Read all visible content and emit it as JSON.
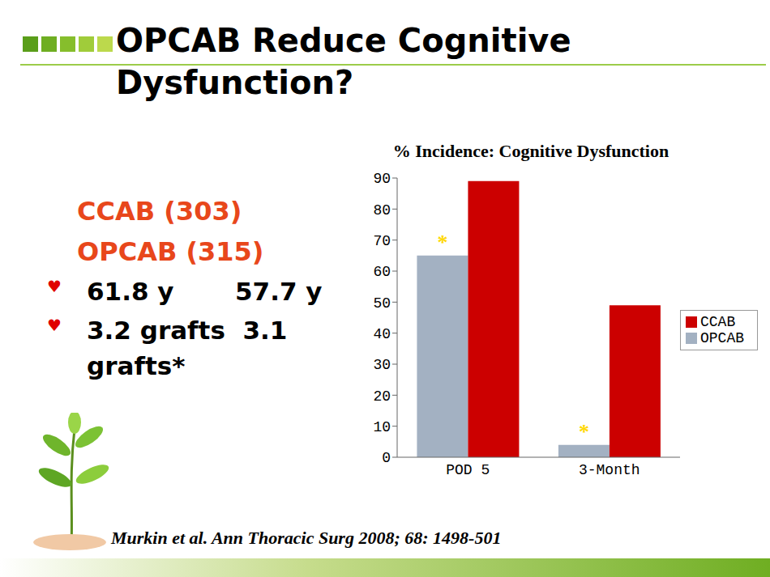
{
  "slide": {
    "title": "OPCAB Reduce Cognitive Dysfunction?",
    "groups": [
      "CCAB (303)",
      "OPCAB (315)"
    ],
    "bullet": "♥",
    "bullets": [
      "61.8 y       57.7 y",
      "3.2 grafts  3.1 grafts*"
    ],
    "citation": "Murkin et al. Ann Thoracic Surg 2008; 68: 1498-501"
  },
  "chart_data": {
    "type": "bar",
    "title": "% Incidence: Cognitive Dysfunction",
    "categories": [
      "POD 5",
      "3-Month"
    ],
    "series": [
      {
        "name": "OPCAB",
        "color": "#a3b1c2",
        "values": [
          65,
          4
        ]
      },
      {
        "name": "CCAB",
        "color": "#cc0000",
        "values": [
          89,
          49
        ]
      }
    ],
    "ylim": [
      0,
      90
    ],
    "yticks": [
      0,
      10,
      20,
      30,
      40,
      50,
      60,
      70,
      80,
      90
    ],
    "grid": false,
    "legend": "right",
    "annotations": [
      {
        "text": "*",
        "series": "OPCAB",
        "category": "POD 5"
      },
      {
        "text": "*",
        "series": "OPCAB",
        "category": "3-Month"
      }
    ]
  }
}
